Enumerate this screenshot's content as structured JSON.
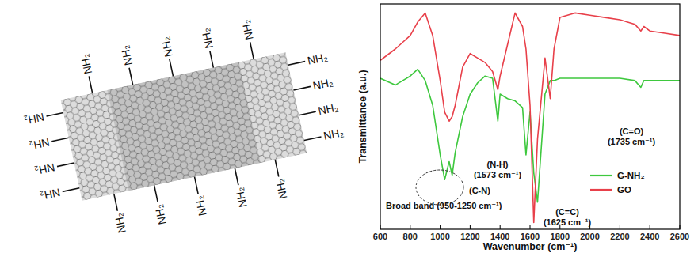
{
  "diagram": {
    "top": [
      "NH₂",
      "NH₂",
      "NH₂",
      "NH₂",
      "NH₂"
    ],
    "bottom": [
      "NH₂",
      "NH₂",
      "NH₂",
      "NH₂",
      "NH₂"
    ],
    "left": [
      "NH₂",
      "NH₂",
      "NH₂",
      "NH₂"
    ],
    "right": [
      "NH₂",
      "NH₂",
      "NH₂",
      "NH₂"
    ]
  },
  "chart_data": {
    "type": "line",
    "x_label": "Wavenumber (cm⁻¹)",
    "y_label": "Transmittance (a.u.)",
    "x": [
      600,
      700,
      800,
      850,
      900,
      950,
      1000,
      1030,
      1060,
      1080,
      1100,
      1150,
      1200,
      1250,
      1300,
      1350,
      1385,
      1400,
      1450,
      1500,
      1550,
      1573,
      1600,
      1625,
      1650,
      1700,
      1735,
      1760,
      1800,
      1900,
      2000,
      2100,
      2200,
      2300,
      2340,
      2360,
      2400,
      2500,
      2600
    ],
    "series": [
      {
        "name": "G-NH₂",
        "color": "#3ec83e",
        "values": [
          67,
          64,
          68,
          71,
          66,
          55,
          33,
          22,
          30,
          24,
          34,
          50,
          60,
          65,
          68,
          67,
          48,
          60,
          58,
          57,
          54,
          33,
          52,
          25,
          12,
          60,
          66,
          66,
          67,
          67,
          67,
          67,
          67,
          66,
          63,
          66,
          66,
          66,
          66
        ]
      },
      {
        "name": "GO",
        "color": "#e8404a",
        "values": [
          75,
          80,
          86,
          92,
          96,
          86,
          66,
          52,
          48,
          50,
          55,
          72,
          78,
          76,
          74,
          70,
          62,
          68,
          82,
          96,
          90,
          80,
          55,
          3,
          40,
          76,
          58,
          80,
          94,
          96,
          95,
          94,
          93,
          91,
          88,
          90,
          88,
          87,
          86
        ]
      }
    ],
    "xlim": [
      600,
      2600
    ],
    "xticks": [
      600,
      800,
      1000,
      1200,
      1400,
      1600,
      1800,
      2000,
      2200,
      2400,
      2600
    ],
    "ylim": [
      0,
      100
    ],
    "tick_labels": "x",
    "legend": "right",
    "annotations": [
      [
        "(C=O)",
        "(1735 cm⁻¹)"
      ],
      [
        "(N-H)",
        "(1573 cm⁻¹)"
      ],
      [
        "(C=C)",
        "(1625 cm⁻¹)"
      ],
      [
        "(C-N)"
      ],
      [
        "Broad band (950-1250 cm⁻¹)"
      ]
    ]
  }
}
